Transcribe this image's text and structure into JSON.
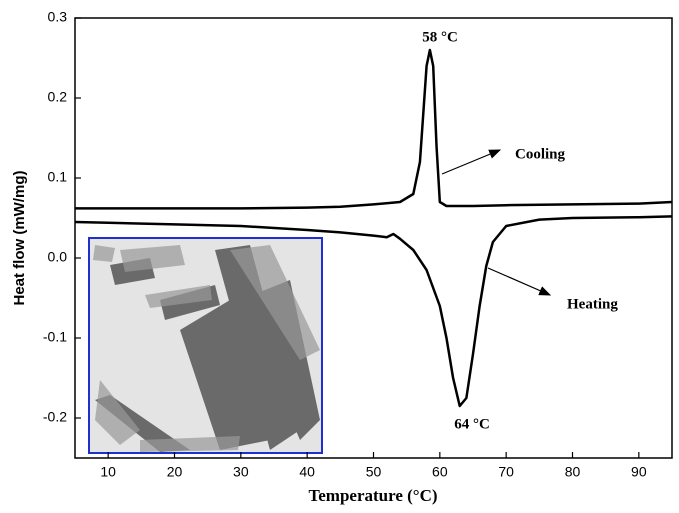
{
  "chart_data": {
    "type": "line",
    "x_label": "Temperature (°C)",
    "y_label": "Heat flow (mW/mg)",
    "xlim": [
      5,
      95
    ],
    "ylim": [
      -0.25,
      0.3
    ],
    "xticks": [
      10,
      20,
      30,
      40,
      50,
      60,
      70,
      80,
      90
    ],
    "yticks": [
      -0.2,
      -0.1,
      {
        "value": 0,
        "label": "0.0"
      },
      0.1,
      0.2,
      0.3
    ],
    "annotations": [
      "58 °C",
      "Cooling",
      "Heating",
      "64 °C"
    ],
    "series": [
      {
        "name": "Cooling",
        "color": "#000000",
        "x": [
          5,
          10,
          20,
          30,
          40,
          45,
          50,
          54,
          56,
          57,
          57.5,
          58,
          58.5,
          59,
          59.5,
          60,
          61,
          65,
          70,
          80,
          90,
          95
        ],
        "values": [
          0.062,
          0.062,
          0.062,
          0.062,
          0.063,
          0.064,
          0.067,
          0.07,
          0.08,
          0.12,
          0.18,
          0.24,
          0.26,
          0.24,
          0.14,
          0.07,
          0.065,
          0.065,
          0.066,
          0.067,
          0.068,
          0.07
        ]
      },
      {
        "name": "Heating",
        "color": "#000000",
        "x": [
          5,
          10,
          20,
          30,
          40,
          45,
          50,
          52,
          53,
          54,
          56,
          58,
          60,
          61,
          62,
          63,
          64,
          65,
          66,
          67,
          68,
          70,
          75,
          80,
          90,
          95
        ],
        "values": [
          0.045,
          0.044,
          0.042,
          0.04,
          0.035,
          0.032,
          0.028,
          0.026,
          0.03,
          0.024,
          0.01,
          -0.015,
          -0.06,
          -0.1,
          -0.15,
          -0.185,
          -0.175,
          -0.12,
          -0.06,
          -0.01,
          0.02,
          0.04,
          0.048,
          0.05,
          0.051,
          0.052
        ]
      }
    ]
  }
}
